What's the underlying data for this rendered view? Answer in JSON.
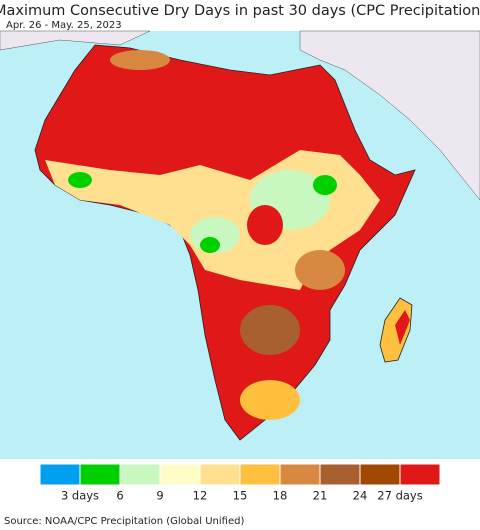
{
  "title": "Maximum Consecutive Dry Days in past 30 days (CPC Precipitation)",
  "subtitle": "Apr. 26 - May. 25, 2023",
  "legend": {
    "colors": [
      "#00a0f0",
      "#00d000",
      "#c8f8c0",
      "#fffcc8",
      "#ffe090",
      "#ffc040",
      "#d88840",
      "#a86030",
      "#a04800",
      "#e01818"
    ],
    "labels": [
      "3 days",
      "6",
      "9",
      "12",
      "15",
      "18",
      "21",
      "24",
      "27 days"
    ]
  },
  "source": "Source: NOAA/CPC Precipitation (Global Unified)"
}
